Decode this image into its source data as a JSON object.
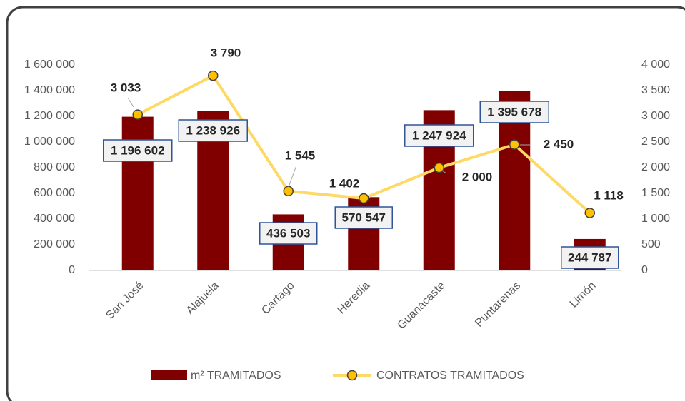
{
  "chart_data": {
    "type": "bar+line",
    "categories": [
      "San José",
      "Alajuela",
      "Cartago",
      "Heredia",
      "Guanacaste",
      "Puntarenas",
      "Limón"
    ],
    "series": [
      {
        "name": "m² TRAMITADOS",
        "type": "bar",
        "color": "#800000",
        "axis": "y",
        "values": [
          1196602,
          1238926,
          436503,
          570547,
          1247924,
          1395678,
          244787
        ],
        "value_labels": [
          "1 196 602",
          "1 238 926",
          "436 503",
          "570 547",
          "1 247 924",
          "1 395 678",
          "244 787"
        ]
      },
      {
        "name": "CONTRATOS TRAMITADOS",
        "type": "line",
        "color": "#ffd966",
        "marker_color": "#ffc000",
        "axis": "y2",
        "values": [
          3033,
          3790,
          1545,
          1402,
          2000,
          2450,
          1118
        ],
        "value_labels": [
          "3 033",
          "3 790",
          "1 545",
          "1 402",
          "2 000",
          "2 450",
          "1 118"
        ]
      }
    ],
    "ylim": [
      0,
      1600000
    ],
    "yticks": [
      0,
      {
        "value": 200000,
        "label": "200 000"
      },
      {
        "value": 400000,
        "label": "400 000"
      },
      {
        "value": 600000,
        "label": "600 000"
      },
      {
        "value": 800000,
        "label": "800 000"
      },
      {
        "value": 1000000,
        "label": "1 000 000"
      },
      {
        "value": 1200000,
        "label": "1 200 000"
      },
      {
        "value": 1400000,
        "label": "1 400 000"
      },
      {
        "value": 1600000,
        "label": "1 600 000"
      }
    ],
    "y2lim": [
      0,
      4000
    ],
    "y2ticks": [
      0,
      500,
      {
        "value": 1000,
        "label": "1 000"
      },
      {
        "value": 1500,
        "label": "1 500"
      },
      {
        "value": 2000,
        "label": "2 000"
      },
      {
        "value": 2500,
        "label": "2 500"
      },
      {
        "value": 3000,
        "label": "3 000"
      },
      {
        "value": 3500,
        "label": "3 500"
      },
      {
        "value": 4000,
        "label": "4 000"
      }
    ],
    "grid": false,
    "legend": "bottom"
  }
}
